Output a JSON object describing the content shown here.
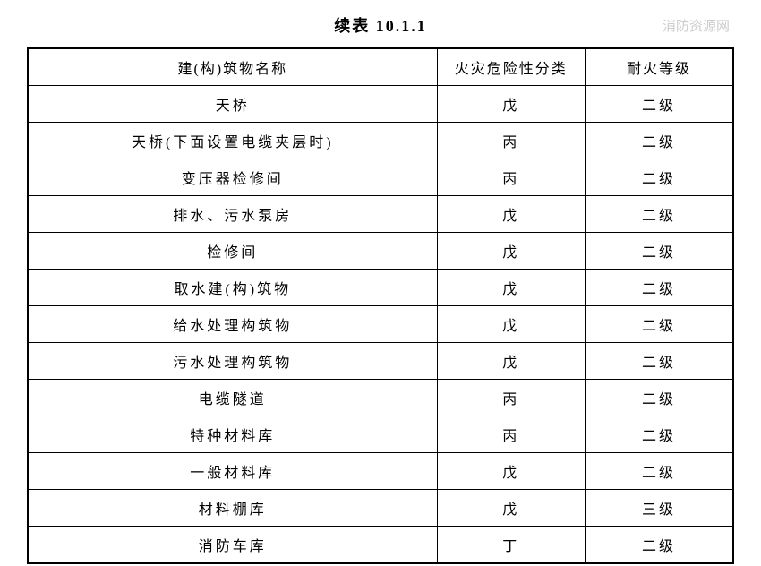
{
  "title": "续表 10.1.1",
  "watermark": "消防资源网",
  "table": {
    "columns": [
      "建(构)筑物名称",
      "火灾危险性分类",
      "耐火等级"
    ],
    "rows": [
      [
        "天桥",
        "戊",
        "二级"
      ],
      [
        "天桥(下面设置电缆夹层时)",
        "丙",
        "二级"
      ],
      [
        "变压器检修间",
        "丙",
        "二级"
      ],
      [
        "排水、污水泵房",
        "戊",
        "二级"
      ],
      [
        "检修间",
        "戊",
        "二级"
      ],
      [
        "取水建(构)筑物",
        "戊",
        "二级"
      ],
      [
        "给水处理构筑物",
        "戊",
        "二级"
      ],
      [
        "污水处理构筑物",
        "戊",
        "二级"
      ],
      [
        "电缆隧道",
        "丙",
        "二级"
      ],
      [
        "特种材料库",
        "丙",
        "二级"
      ],
      [
        "一般材料库",
        "戊",
        "二级"
      ],
      [
        "材料棚库",
        "戊",
        "三级"
      ],
      [
        "消防车库",
        "丁",
        "二级"
      ]
    ],
    "column_widths": [
      "58%",
      "21%",
      "21%"
    ],
    "border_color": "#000000",
    "background_color": "#ffffff",
    "header_fontsize": 16,
    "cell_fontsize": 16,
    "title_fontsize": 18
  }
}
